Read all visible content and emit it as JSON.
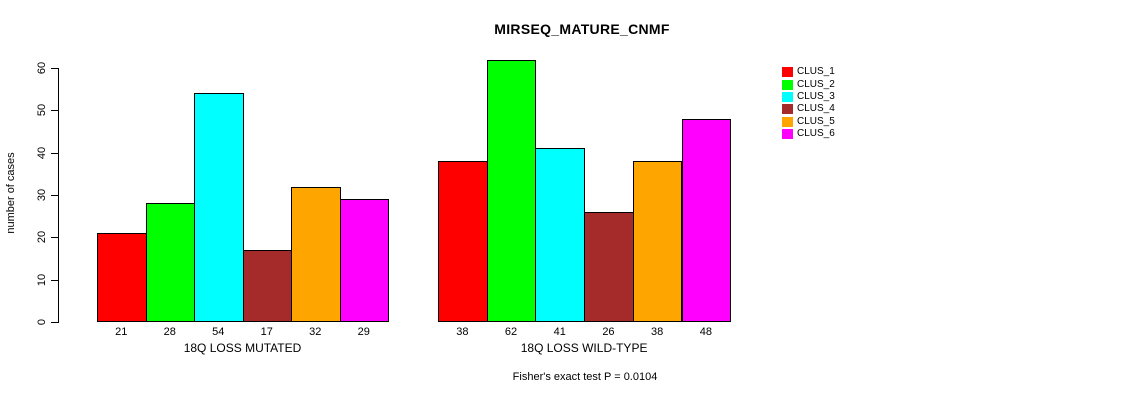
{
  "chart_data": {
    "type": "bar",
    "title": "MIRSEQ_MATURE_CNMF",
    "ylabel": "number of cases",
    "xlabel": "",
    "ylim": [
      0,
      60
    ],
    "yticks": [
      0,
      10,
      20,
      30,
      40,
      50,
      60
    ],
    "categories": [
      "CLUS_1",
      "CLUS_2",
      "CLUS_3",
      "CLUS_4",
      "CLUS_5",
      "CLUS_6"
    ],
    "colors": [
      "#FF0000",
      "#00FF00",
      "#00FFFF",
      "#A52A2A",
      "#FFA500",
      "#FF00FF"
    ],
    "series": [
      {
        "name": "18Q LOSS MUTATED",
        "values": [
          21,
          28,
          54,
          17,
          32,
          29
        ]
      },
      {
        "name": "18Q LOSS WILD-TYPE",
        "values": [
          38,
          62,
          41,
          26,
          38,
          48
        ]
      }
    ],
    "legend_position": "right",
    "grid": false,
    "bar_value_labels_shown": true,
    "annotation": "Fisher's exact test P = 0.0104"
  }
}
